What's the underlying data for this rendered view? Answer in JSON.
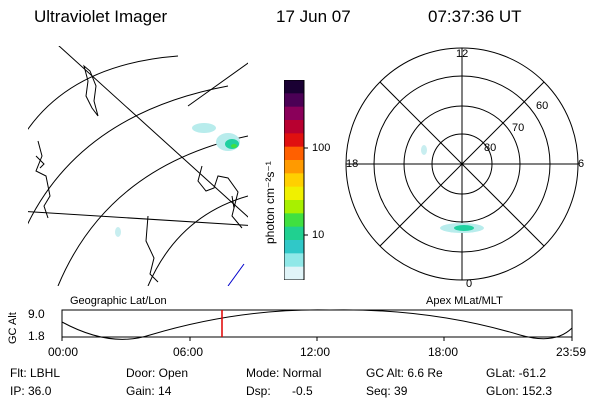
{
  "header": {
    "title": "Ultraviolet Imager",
    "date": "17 Jun 07",
    "time": "07:37:36 UT"
  },
  "colorbar": {
    "label": "photon cm⁻²s⁻¹",
    "ticks": [
      "100",
      "10"
    ],
    "colors": [
      "#1a0033",
      "#4b0055",
      "#8a005a",
      "#b80030",
      "#e01010",
      "#ff6000",
      "#ff9a00",
      "#ffd000",
      "#f0f000",
      "#a8f000",
      "#40e040",
      "#20d090",
      "#30c8c8",
      "#90e8e8",
      "#e0f4f8"
    ]
  },
  "polar": {
    "mlt_labels": {
      "top": "12",
      "left": "18",
      "right": "6",
      "bottom": "0"
    },
    "lat_labels": [
      "60",
      "70",
      "80"
    ]
  },
  "orbit": {
    "left_label": "Geographic Lat/Lon",
    "right_label": "Apex MLat/MLT",
    "axis_title": "GC Alt",
    "y_ticks": [
      "9.0",
      "1.8"
    ],
    "x_ticks": [
      "00:00",
      "06:00",
      "12:00",
      "18:00",
      "23:59"
    ],
    "marker_color": "#e00000"
  },
  "info": {
    "filter": "Flt: LBHL",
    "ip": "IP: 36.0",
    "door": "Door: Open",
    "gain": "Gain: 14",
    "mode": "Mode: Normal",
    "dsp_label": "Dsp:",
    "dsp_value": "-0.5",
    "gc_alt": "GC Alt: 6.6 Re",
    "seq": "Seq: 39",
    "glat": "GLat: -61.2",
    "glon": "GLon: 152.3"
  }
}
